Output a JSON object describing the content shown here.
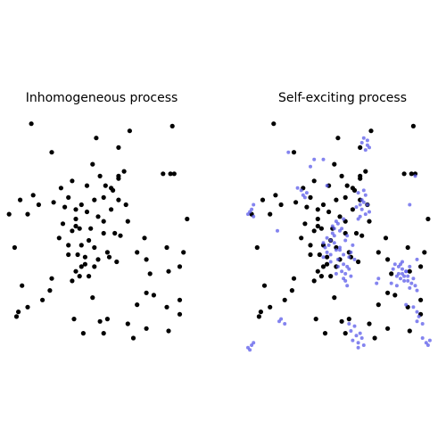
{
  "colors": {
    "background": "#ffffff",
    "base_points": "#000000",
    "offspring_points": "#5b5bea"
  },
  "chart_data": [
    {
      "type": "scatter",
      "title": "Inhomogeneous process",
      "xlabel": "",
      "ylabel": "",
      "grid": false,
      "axes_visible": false,
      "xlim": [
        0,
        1
      ],
      "ylim": [
        0,
        1
      ],
      "series": [
        {
          "role": "events",
          "color": "#000000",
          "x": [
            0.14,
            0.49,
            0.9,
            0.67,
            0.25,
            0.61,
            0.47,
            0.85,
            0.51,
            0.89,
            0.61,
            0.91,
            0.61,
            0.64,
            0.54,
            0.57,
            0.36,
            0.3,
            0.44,
            0.58,
            0.15,
            0.34,
            0.48,
            0.53,
            0.61,
            0.26,
            0.41,
            0.32,
            0.65,
            0.38,
            0.18,
            0.02,
            0.08,
            0.38,
            0.5,
            0.57,
            0.12,
            0.44,
            0.53,
            0.38,
            0.66,
            0.98,
            0.46,
            0.4,
            0.36,
            0.31,
            0.53,
            0.62,
            0.75,
            0.59,
            0.29,
            0.45,
            0.41,
            0.48,
            0.34,
            0.55,
            0.39,
            0.71,
            0.87,
            0.96,
            0.05,
            0.34,
            0.43,
            0.5,
            0.56,
            0.6,
            0.43,
            0.76,
            0.48,
            0.41,
            0.38,
            0.94,
            0.88,
            0.78,
            0.4,
            0.45,
            0.36,
            0.25,
            0.09,
            0.24,
            0.8,
            0.76,
            0.2,
            0.47,
            0.94,
            0.71,
            0.87,
            0.07,
            0.12,
            0.94,
            0.06,
            0.51,
            0.37,
            0.55,
            0.66,
            0.76,
            0.88,
            0.42,
            0.53,
            0.69
          ],
          "y": [
            0.96,
            0.9,
            0.95,
            0.93,
            0.84,
            0.86,
            0.79,
            0.75,
            0.74,
            0.75,
            0.74,
            0.75,
            0.73,
            0.76,
            0.7,
            0.69,
            0.72,
            0.69,
            0.7,
            0.68,
            0.66,
            0.65,
            0.64,
            0.65,
            0.64,
            0.63,
            0.62,
            0.61,
            0.62,
            0.6,
            0.62,
            0.58,
            0.64,
            0.56,
            0.57,
            0.6,
            0.58,
            0.59,
            0.55,
            0.53,
            0.55,
            0.56,
            0.52,
            0.52,
            0.51,
            0.54,
            0.5,
            0.49,
            0.48,
            0.5,
            0.48,
            0.47,
            0.45,
            0.44,
            0.45,
            0.42,
            0.41,
            0.42,
            0.44,
            0.42,
            0.44,
            0.41,
            0.4,
            0.39,
            0.4,
            0.38,
            0.37,
            0.39,
            0.36,
            0.36,
            0.34,
            0.36,
            0.34,
            0.33,
            0.32,
            0.32,
            0.3,
            0.31,
            0.28,
            0.26,
            0.24,
            0.25,
            0.22,
            0.23,
            0.22,
            0.2,
            0.19,
            0.17,
            0.19,
            0.16,
            0.15,
            0.13,
            0.14,
            0.14,
            0.12,
            0.1,
            0.09,
            0.08,
            0.08,
            0.06
          ]
        }
      ]
    },
    {
      "type": "scatter",
      "title": "Self-exciting process",
      "xlabel": "",
      "ylabel": "",
      "grid": false,
      "axes_visible": false,
      "xlim": [
        0,
        1
      ],
      "ylim": [
        0,
        1
      ],
      "series": [
        {
          "role": "immigrant events",
          "color": "#000000",
          "x": [
            0.14,
            0.49,
            0.9,
            0.67,
            0.25,
            0.61,
            0.47,
            0.85,
            0.51,
            0.89,
            0.61,
            0.91,
            0.61,
            0.64,
            0.54,
            0.57,
            0.36,
            0.3,
            0.44,
            0.58,
            0.15,
            0.34,
            0.48,
            0.53,
            0.61,
            0.26,
            0.41,
            0.32,
            0.65,
            0.38,
            0.18,
            0.02,
            0.08,
            0.38,
            0.5,
            0.57,
            0.12,
            0.44,
            0.53,
            0.38,
            0.66,
            0.98,
            0.46,
            0.4,
            0.36,
            0.31,
            0.53,
            0.62,
            0.75,
            0.59,
            0.29,
            0.45,
            0.41,
            0.48,
            0.34,
            0.55,
            0.39,
            0.71,
            0.87,
            0.96,
            0.05,
            0.34,
            0.43,
            0.5,
            0.56,
            0.6,
            0.43,
            0.76,
            0.48,
            0.41,
            0.38,
            0.94,
            0.88,
            0.78,
            0.4,
            0.45,
            0.36,
            0.25,
            0.09,
            0.24,
            0.8,
            0.76,
            0.2,
            0.47,
            0.94,
            0.71,
            0.87,
            0.07,
            0.12,
            0.94,
            0.06,
            0.51,
            0.37,
            0.55,
            0.66,
            0.76,
            0.88,
            0.42,
            0.53,
            0.69
          ],
          "y": [
            0.96,
            0.9,
            0.95,
            0.93,
            0.84,
            0.86,
            0.79,
            0.75,
            0.74,
            0.75,
            0.74,
            0.75,
            0.73,
            0.76,
            0.7,
            0.69,
            0.72,
            0.69,
            0.7,
            0.68,
            0.66,
            0.65,
            0.64,
            0.65,
            0.64,
            0.63,
            0.62,
            0.61,
            0.62,
            0.6,
            0.62,
            0.58,
            0.64,
            0.56,
            0.57,
            0.6,
            0.58,
            0.59,
            0.55,
            0.53,
            0.55,
            0.56,
            0.52,
            0.52,
            0.51,
            0.54,
            0.5,
            0.49,
            0.48,
            0.5,
            0.48,
            0.47,
            0.45,
            0.44,
            0.45,
            0.42,
            0.41,
            0.42,
            0.44,
            0.42,
            0.44,
            0.41,
            0.4,
            0.39,
            0.4,
            0.38,
            0.37,
            0.39,
            0.36,
            0.36,
            0.34,
            0.36,
            0.34,
            0.33,
            0.32,
            0.32,
            0.3,
            0.31,
            0.28,
            0.26,
            0.24,
            0.25,
            0.22,
            0.23,
            0.22,
            0.2,
            0.19,
            0.17,
            0.19,
            0.16,
            0.15,
            0.13,
            0.14,
            0.14,
            0.12,
            0.1,
            0.09,
            0.08,
            0.08,
            0.06
          ]
        },
        {
          "role": "triggered events",
          "color": "#5b5bea",
          "x": [
            0.62,
            0.65,
            0.64,
            0.66,
            0.65,
            0.63,
            0.29,
            0.32,
            0.3,
            0.27,
            0.31,
            0.46,
            0.49,
            0.47,
            0.5,
            0.48,
            0.52,
            0.63,
            0.61,
            0.64,
            0.62,
            0.6,
            0.63,
            0.59,
            0.62,
            0.65,
            0.64,
            0.61,
            0.66,
            0.6,
            0.01,
            0.03,
            0.02,
            0.0,
            0.03,
            0.43,
            0.45,
            0.41,
            0.46,
            0.44,
            0.42,
            0.47,
            0.43,
            0.48,
            0.45,
            0.41,
            0.5,
            0.52,
            0.47,
            0.45,
            0.49,
            0.53,
            0.51,
            0.54,
            0.5,
            0.55,
            0.56,
            0.52,
            0.58,
            0.54,
            0.57,
            0.55,
            0.53,
            0.51,
            0.52,
            0.56,
            0.54,
            0.53,
            0.49,
            0.48,
            0.79,
            0.82,
            0.84,
            0.81,
            0.86,
            0.88,
            0.8,
            0.83,
            0.85,
            0.87,
            0.89,
            0.82,
            0.84,
            0.86,
            0.78,
            0.9,
            0.81,
            0.85,
            0.83,
            0.87,
            0.91,
            0.92,
            0.88,
            0.84,
            0.17,
            0.2,
            0.18,
            0.92,
            0.95,
            0.93,
            0.0,
            0.02,
            0.01,
            0.03,
            0.55,
            0.58,
            0.56,
            0.61,
            0.59,
            0.62,
            0.6,
            0.57,
            0.63,
            0.6,
            0.97,
            0.99,
            0.98,
            0.95,
            0.34,
            0.36,
            0.43,
            0.9,
            0.92,
            0.7,
            0.71,
            0.41,
            0.16,
            0.88,
            0.86,
            0.22,
            0.92,
            0.91
          ],
          "y": [
            0.88,
            0.87,
            0.85,
            0.86,
            0.89,
            0.9,
            0.68,
            0.67,
            0.66,
            0.69,
            0.65,
            0.53,
            0.54,
            0.52,
            0.51,
            0.55,
            0.56,
            0.63,
            0.62,
            0.66,
            0.64,
            0.67,
            0.68,
            0.61,
            0.6,
            0.62,
            0.58,
            0.57,
            0.59,
            0.56,
            0.59,
            0.62,
            0.6,
            0.58,
            0.57,
            0.48,
            0.47,
            0.46,
            0.5,
            0.45,
            0.44,
            0.49,
            0.42,
            0.43,
            0.41,
            0.4,
            0.44,
            0.41,
            0.46,
            0.38,
            0.39,
            0.47,
            0.52,
            0.49,
            0.43,
            0.4,
            0.42,
            0.37,
            0.39,
            0.36,
            0.45,
            0.35,
            0.33,
            0.34,
            0.31,
            0.32,
            0.28,
            0.3,
            0.36,
            0.33,
            0.35,
            0.36,
            0.33,
            0.32,
            0.34,
            0.36,
            0.37,
            0.31,
            0.32,
            0.3,
            0.29,
            0.33,
            0.35,
            0.34,
            0.29,
            0.31,
            0.28,
            0.3,
            0.37,
            0.32,
            0.28,
            0.26,
            0.27,
            0.38,
            0.13,
            0.12,
            0.14,
            0.13,
            0.12,
            0.15,
            0.02,
            0.03,
            0.01,
            0.04,
            0.12,
            0.11,
            0.09,
            0.08,
            0.07,
            0.06,
            0.04,
            0.05,
            0.03,
            0.02,
            0.04,
            0.05,
            0.03,
            0.06,
            0.78,
            0.81,
            0.7,
            0.19,
            0.17,
            0.29,
            0.31,
            0.81,
            0.51,
            0.62,
            0.2,
            0.84,
            0.39,
            0.74
          ]
        }
      ]
    }
  ]
}
